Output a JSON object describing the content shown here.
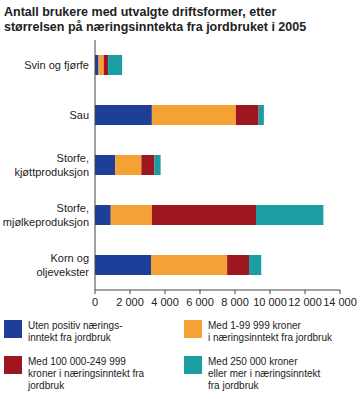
{
  "chart_data": {
    "type": "bar",
    "orientation": "horizontal",
    "stacked": true,
    "grid": false,
    "legend": "bottom",
    "title": "Antall brukere med utvalgte driftsformer, etter\nstørrelsen på næringsinntekta fra jordbruket i 2005",
    "categories": [
      "Svin og fjørfe",
      "Sau",
      "Storfe,\nkjøttproduksjon",
      "Storfe,\nmjølkeproduksjon",
      "Korn og\noljevekster"
    ],
    "xlim": [
      0,
      14000
    ],
    "xticks": [
      0,
      {
        "value": 2000,
        "label": "2 000"
      },
      {
        "value": 4000,
        "label": "4 000"
      },
      {
        "value": 6000,
        "label": "6 000"
      },
      {
        "value": 8000,
        "label": "8 000"
      },
      {
        "value": 10000,
        "label": "10 000"
      },
      {
        "value": 12000,
        "label": "12 000"
      },
      {
        "value": 14000,
        "label": "14 000"
      }
    ],
    "series": [
      {
        "name": "Uten positiv nærings-\ninntekt fra jordbruk",
        "color": "#1d3f9a",
        "values": [
          200,
          3250,
          1150,
          900,
          3200
        ]
      },
      {
        "name": "Med 1-99 999 kroner\ni næringsinntekt fra jordbruk",
        "color": "#f4a236",
        "values": [
          300,
          4800,
          1500,
          2350,
          4350
        ]
      },
      {
        "name": "Med 100 000-249 999\nkroner i næringsinntekt fra\njordbruk",
        "color": "#9e1620",
        "values": [
          250,
          1300,
          750,
          5950,
          1250
        ]
      },
      {
        "name": "Med 250 000 kroner\neller mer i næringsinntekt\nfra jordbruk",
        "color": "#1a9ea2",
        "values": [
          800,
          300,
          350,
          3850,
          700
        ]
      }
    ]
  }
}
